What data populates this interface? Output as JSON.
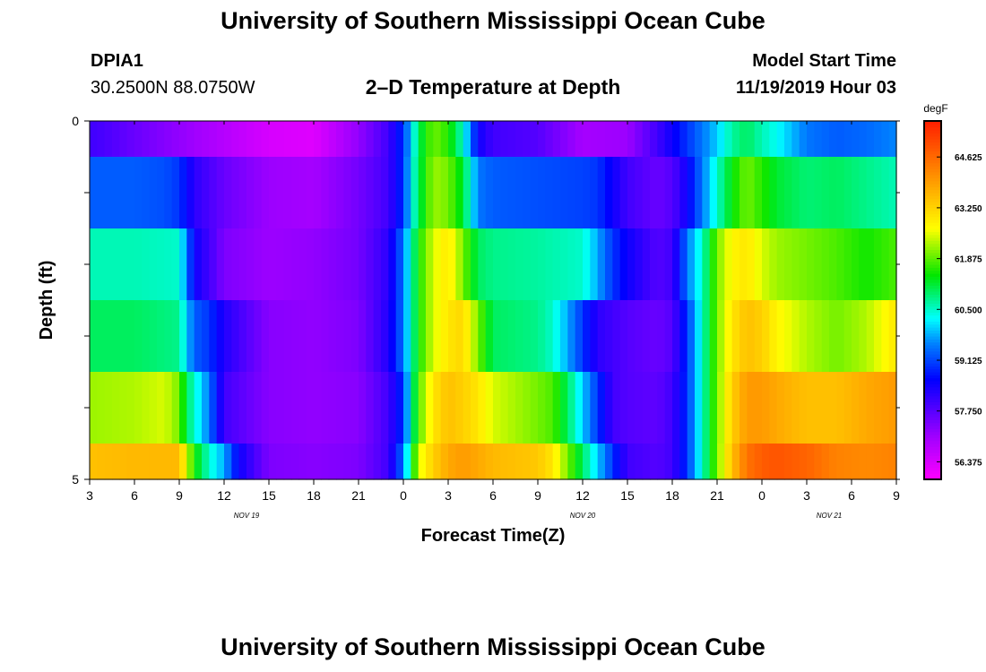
{
  "header": {
    "title": "University of Southern Mississippi Ocean Cube",
    "station_id": "DPIA1",
    "coordinates": "30.2500N 88.0750W",
    "plot_title": "2–D Temperature at Depth",
    "start_label": "Model Start Time",
    "start_value": "11/19/2019 Hour 03"
  },
  "footer": {
    "title": "University of Southern Mississippi Ocean Cube"
  },
  "chart_data": {
    "type": "heatmap",
    "title": "2–D Temperature at Depth",
    "xlabel": "Forecast Time(Z)",
    "ylabel": "Depth (ft)",
    "x_ticks": [
      "3",
      "6",
      "9",
      "12",
      "15",
      "18",
      "21",
      "0",
      "3",
      "6",
      "9",
      "12",
      "15",
      "18",
      "21",
      "0",
      "3",
      "6",
      "9"
    ],
    "x_range_hours": [
      0,
      54
    ],
    "date_labels": [
      {
        "label": "NOV  19",
        "hour": 10.5
      },
      {
        "label": "NOV  20",
        "hour": 33
      },
      {
        "label": "NOV  21",
        "hour": 49.5
      }
    ],
    "y_ticks": [
      "0",
      "5"
    ],
    "y_range": [
      0,
      5
    ],
    "colorbar": {
      "unit": "degF",
      "range": [
        55.9,
        65.6
      ],
      "tick_labels": [
        "64.625",
        "63.250",
        "61.875",
        "60.500",
        "59.125",
        "57.750",
        "56.375"
      ],
      "tick_values": [
        64.625,
        63.25,
        61.875,
        60.5,
        59.125,
        57.75,
        56.375
      ]
    },
    "depth_layers": [
      {
        "depth_range": [
          0,
          0.5
        ],
        "key_hours": [
          0,
          1,
          3,
          6,
          9,
          12,
          15,
          18,
          20,
          21,
          21.5,
          22,
          23,
          24,
          25,
          26,
          27,
          30,
          33,
          36,
          38,
          39,
          40,
          41,
          42,
          43,
          44,
          45,
          46,
          48,
          50,
          52,
          54
        ],
        "values": [
          58.0,
          57.9,
          57.6,
          57.2,
          56.8,
          56.4,
          56.3,
          57.2,
          58.0,
          59.0,
          60.0,
          61.0,
          62.0,
          61.6,
          60.5,
          58.5,
          58.0,
          57.8,
          57.0,
          57.1,
          58.0,
          58.5,
          59.0,
          59.5,
          60.0,
          60.7,
          61.0,
          60.6,
          60.3,
          59.5,
          59.3,
          59.4,
          59.6
        ]
      },
      {
        "depth_range": [
          0.5,
          1.5
        ],
        "key_hours": [
          0,
          3,
          5,
          6,
          7,
          9,
          12,
          15,
          18,
          20,
          21,
          21.5,
          22,
          23,
          24,
          25,
          26,
          27,
          30,
          33,
          34,
          35,
          36,
          38,
          39,
          40,
          41,
          42,
          43,
          44,
          45,
          46,
          48,
          50,
          52,
          54
        ],
        "values": [
          59.3,
          59.3,
          59.2,
          59.0,
          58.2,
          57.6,
          57.1,
          57.0,
          57.5,
          58.0,
          59.0,
          60.2,
          61.0,
          62.2,
          62.0,
          61.2,
          59.5,
          59.3,
          59.2,
          59.1,
          59.0,
          58.5,
          58.0,
          57.6,
          57.8,
          58.5,
          59.5,
          60.5,
          61.4,
          62.0,
          61.6,
          61.2,
          60.9,
          61.0,
          60.8,
          60.6
        ]
      },
      {
        "depth_range": [
          1.5,
          2.5
        ],
        "key_hours": [
          0,
          3,
          6,
          6.5,
          7,
          8,
          9,
          12,
          15,
          18,
          20,
          21,
          21.5,
          22,
          23,
          24,
          25,
          26,
          27,
          30,
          33,
          34,
          35,
          36,
          38,
          39,
          40,
          41,
          42,
          43,
          44,
          45,
          46,
          48,
          50,
          52,
          54
        ],
        "values": [
          60.6,
          60.6,
          60.5,
          59.5,
          58.5,
          58.0,
          57.4,
          57.1,
          57.2,
          57.5,
          58.2,
          59.5,
          60.5,
          61.5,
          62.5,
          63.0,
          62.0,
          61.0,
          60.8,
          60.7,
          60.5,
          59.8,
          59.0,
          58.5,
          57.8,
          58.0,
          59.5,
          60.5,
          62.0,
          62.8,
          63.0,
          62.5,
          62.2,
          62.0,
          61.8,
          61.5,
          61.8
        ]
      },
      {
        "depth_range": [
          2.5,
          3.5
        ],
        "key_hours": [
          0,
          3,
          6,
          6.5,
          7,
          8,
          9,
          12,
          15,
          18,
          20,
          21,
          21.5,
          22,
          23,
          24,
          25,
          26,
          27,
          30,
          31,
          32,
          33,
          34,
          35,
          36,
          38,
          39,
          40,
          41,
          42,
          43,
          44,
          45,
          46,
          48,
          50,
          52,
          54
        ],
        "values": [
          61.0,
          61.0,
          60.8,
          60.0,
          59.3,
          59.0,
          58.3,
          57.3,
          57.2,
          57.4,
          58.3,
          59.5,
          60.5,
          61.5,
          62.5,
          63.0,
          63.2,
          62.0,
          61.0,
          60.8,
          60.5,
          59.8,
          59.0,
          58.2,
          58.0,
          57.8,
          57.6,
          57.8,
          59.0,
          60.5,
          62.0,
          63.0,
          63.5,
          63.3,
          62.8,
          62.3,
          62.0,
          62.3,
          63.0
        ]
      },
      {
        "depth_range": [
          3.5,
          4.5
        ],
        "key_hours": [
          0,
          3,
          5,
          6,
          6.5,
          7,
          8,
          9,
          12,
          15,
          18,
          20,
          21,
          21.5,
          22,
          23,
          24,
          25,
          26,
          27,
          30,
          31,
          32,
          33,
          34,
          35,
          36,
          38,
          39,
          40,
          41,
          42,
          43,
          44,
          45,
          46,
          48,
          50,
          52,
          54
        ],
        "values": [
          62.2,
          62.3,
          62.5,
          62.0,
          61.0,
          60.5,
          59.5,
          58.0,
          57.3,
          57.2,
          57.3,
          58.0,
          59.0,
          60.5,
          61.8,
          63.0,
          63.5,
          63.3,
          63.0,
          62.5,
          62.0,
          61.8,
          61.0,
          60.0,
          59.0,
          58.0,
          57.8,
          57.7,
          58.0,
          59.0,
          60.5,
          62.0,
          63.3,
          64.0,
          64.0,
          63.8,
          63.5,
          63.5,
          63.8,
          64.0
        ]
      },
      {
        "depth_range": [
          4.5,
          5
        ],
        "key_hours": [
          0,
          3,
          6,
          6.5,
          7,
          8,
          9,
          10,
          12,
          15,
          18,
          20,
          21,
          21.5,
          22,
          23,
          24,
          25,
          26,
          27,
          30,
          31,
          32,
          33,
          34,
          35,
          36,
          38,
          39,
          40,
          41,
          42,
          43,
          44,
          45,
          46,
          48,
          50,
          52,
          54
        ],
        "values": [
          63.5,
          63.6,
          63.6,
          62.5,
          61.5,
          60.5,
          59.8,
          58.5,
          57.4,
          57.3,
          57.4,
          58.0,
          59.5,
          61.0,
          62.5,
          63.3,
          63.8,
          64.0,
          63.8,
          63.6,
          63.4,
          63.0,
          62.0,
          61.0,
          60.0,
          59.0,
          58.0,
          57.8,
          58.0,
          59.0,
          60.5,
          62.0,
          63.5,
          64.5,
          64.8,
          64.9,
          64.7,
          64.3,
          64.2,
          64.3
        ]
      }
    ]
  }
}
